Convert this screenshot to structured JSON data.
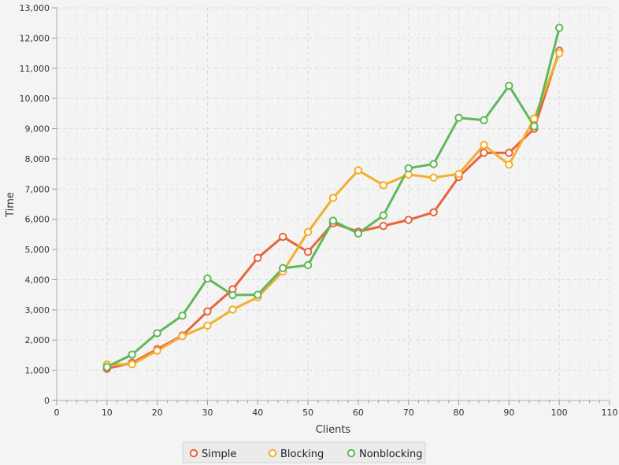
{
  "chart_data": {
    "type": "line",
    "title": "",
    "xlabel": "Clients",
    "ylabel": "Time",
    "xlim": [
      0,
      110
    ],
    "ylim": [
      0,
      13000
    ],
    "xticks": [
      "0",
      "10",
      "20",
      "30",
      "40",
      "50",
      "60",
      "70",
      "80",
      "90",
      "100",
      "110"
    ],
    "yticks": [
      "0",
      "1,000",
      "2,000",
      "3,000",
      "4,000",
      "5,000",
      "6,000",
      "7,000",
      "8,000",
      "9,000",
      "10,000",
      "11,000",
      "12,000",
      "13,000"
    ],
    "grid": true,
    "legend_position": "bottom",
    "x": [
      10,
      15,
      20,
      25,
      30,
      35,
      40,
      45,
      50,
      55,
      60,
      65,
      70,
      75,
      80,
      85,
      90,
      95,
      100
    ],
    "series": [
      {
        "name": "Simple",
        "color": "#e8643a",
        "values": [
          1050,
          1250,
          1700,
          2150,
          2950,
          3680,
          4720,
          5420,
          4920,
          5870,
          5590,
          5780,
          5980,
          6230,
          7400,
          8200,
          8200,
          9000,
          11580
        ]
      },
      {
        "name": "Blocking",
        "color": "#f3ae2b",
        "values": [
          1190,
          1200,
          1650,
          2130,
          2480,
          3010,
          3420,
          4270,
          5580,
          6710,
          7620,
          7130,
          7480,
          7380,
          7500,
          8460,
          7810,
          9330,
          11500
        ]
      },
      {
        "name": "Nonblocking",
        "color": "#5fb85a",
        "values": [
          1110,
          1520,
          2230,
          2810,
          4040,
          3490,
          3500,
          4380,
          4480,
          5950,
          5530,
          6130,
          7690,
          7830,
          9360,
          9280,
          10420,
          9080,
          12340
        ]
      }
    ]
  }
}
